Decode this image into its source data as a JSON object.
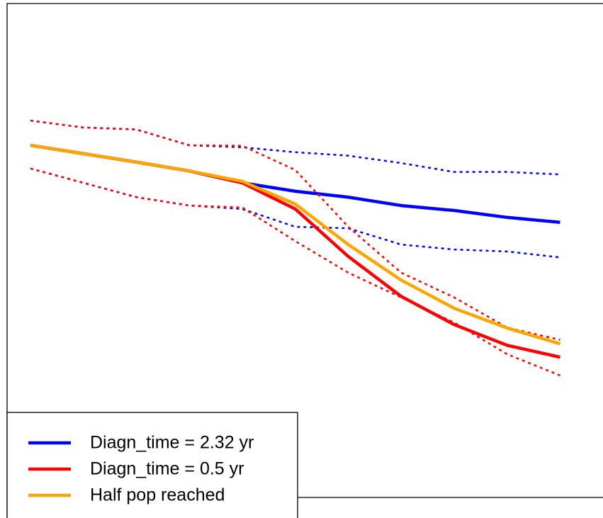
{
  "chart_data": {
    "type": "line",
    "x": [
      0,
      1,
      2,
      3,
      4,
      5,
      6,
      7,
      8,
      9,
      10
    ],
    "xlim": [
      -0.44,
      10.81
    ],
    "ylim": [
      0,
      100
    ],
    "legend": "bottom-left",
    "series": [
      {
        "color": "#0000ff",
        "dash": true,
        "values": [
          76.3,
          74.9,
          74.5,
          71.3,
          70.9,
          69.9,
          69.2,
          67.7,
          65.9,
          65.9,
          65.4
        ]
      },
      {
        "color": "#0000ff",
        "dash": true,
        "values": [
          66.6,
          63.7,
          60.8,
          59.1,
          58.4,
          54.8,
          54.5,
          51.2,
          50.2,
          49.8,
          48.6
        ]
      },
      {
        "name": "Diagn_time = 2.32 yr",
        "color": "#0000ff",
        "values": [
          71.3,
          69.6,
          67.9,
          66.1,
          63.7,
          62.0,
          60.8,
          59.1,
          58.1,
          56.7,
          55.7
        ]
      },
      {
        "color": "#ff0000",
        "dash": true,
        "values": [
          76.3,
          74.9,
          74.5,
          71.3,
          71.2,
          66.3,
          54.8,
          45.5,
          40.5,
          34.4,
          31.9
        ]
      },
      {
        "color": "#ff0000",
        "dash": true,
        "values": [
          66.6,
          63.7,
          60.8,
          59.1,
          58.7,
          51.9,
          45.5,
          40.5,
          35.4,
          29.0,
          24.7
        ]
      },
      {
        "name": "Diagn_time = 0.5 yr",
        "color": "#ff0000",
        "values": [
          71.3,
          69.6,
          67.9,
          66.1,
          63.7,
          58.4,
          48.8,
          40.7,
          35.0,
          30.8,
          28.4
        ]
      },
      {
        "name": "Half pop reached",
        "color": "#ffa500",
        "values": [
          71.3,
          69.6,
          67.9,
          66.1,
          64.0,
          59.4,
          51.2,
          44.0,
          38.3,
          34.3,
          31.1
        ]
      }
    ]
  }
}
